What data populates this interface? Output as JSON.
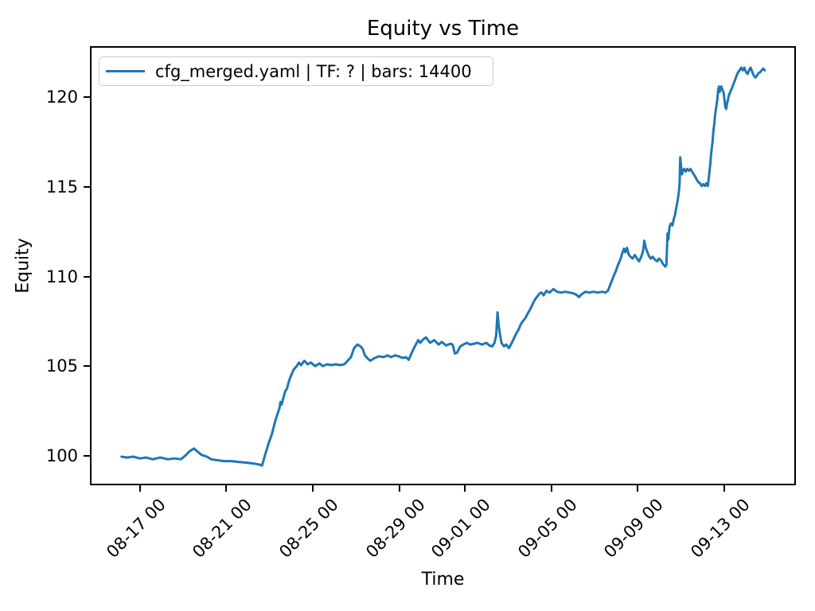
{
  "figure": {
    "title": "Equity vs Time",
    "xlabel": "Time",
    "ylabel": "Equity",
    "legend": {
      "label": "cfg_merged.yaml | TF: ? | bars: 14400",
      "position": "upper left"
    }
  },
  "chart_data": {
    "type": "line",
    "title": "Equity vs Time",
    "xlabel": "Time",
    "ylabel": "Equity",
    "grid": false,
    "legend_position": "upper left",
    "x_unit": "days since 08-16 00:00",
    "xlim": [
      -1.3,
      31.3
    ],
    "ylim": [
      98.35,
      122.85
    ],
    "y_ticks": [
      100,
      105,
      110,
      115,
      120
    ],
    "x_ticks": [
      {
        "label": "08-17 00",
        "t": 1
      },
      {
        "label": "08-21 00",
        "t": 5
      },
      {
        "label": "08-25 00",
        "t": 9
      },
      {
        "label": "08-29 00",
        "t": 13
      },
      {
        "label": "09-01 00",
        "t": 16
      },
      {
        "label": "09-05 00",
        "t": 20
      },
      {
        "label": "09-09 00",
        "t": 24
      },
      {
        "label": "09-13 00",
        "t": 28
      }
    ],
    "series": [
      {
        "name": "cfg_merged.yaml | TF: ? | bars: 14400",
        "color": "#1f77b4",
        "points": [
          [
            0.16,
            99.95
          ],
          [
            0.4,
            99.9
          ],
          [
            0.7,
            99.95
          ],
          [
            1.0,
            99.85
          ],
          [
            1.3,
            99.9
          ],
          [
            1.6,
            99.8
          ],
          [
            1.95,
            99.9
          ],
          [
            2.3,
            99.8
          ],
          [
            2.6,
            99.85
          ],
          [
            2.9,
            99.8
          ],
          [
            3.1,
            100.0
          ],
          [
            3.3,
            100.25
          ],
          [
            3.5,
            100.4
          ],
          [
            3.7,
            100.2
          ],
          [
            3.85,
            100.05
          ],
          [
            4.1,
            99.95
          ],
          [
            4.3,
            99.8
          ],
          [
            4.6,
            99.75
          ],
          [
            4.9,
            99.7
          ],
          [
            5.25,
            99.7
          ],
          [
            5.6,
            99.65
          ],
          [
            6.0,
            99.6
          ],
          [
            6.35,
            99.55
          ],
          [
            6.55,
            99.5
          ],
          [
            6.65,
            99.45
          ],
          [
            6.8,
            100.1
          ],
          [
            6.95,
            100.7
          ],
          [
            7.1,
            101.2
          ],
          [
            7.25,
            101.9
          ],
          [
            7.35,
            102.3
          ],
          [
            7.45,
            102.65
          ],
          [
            7.5,
            103.0
          ],
          [
            7.55,
            102.85
          ],
          [
            7.65,
            103.3
          ],
          [
            7.72,
            103.6
          ],
          [
            7.8,
            103.75
          ],
          [
            7.9,
            104.2
          ],
          [
            8.0,
            104.5
          ],
          [
            8.1,
            104.8
          ],
          [
            8.25,
            105.0
          ],
          [
            8.35,
            105.2
          ],
          [
            8.45,
            105.05
          ],
          [
            8.6,
            105.3
          ],
          [
            8.75,
            105.1
          ],
          [
            8.9,
            105.2
          ],
          [
            9.1,
            105.0
          ],
          [
            9.3,
            105.15
          ],
          [
            9.45,
            105.0
          ],
          [
            9.65,
            105.1
          ],
          [
            9.85,
            105.05
          ],
          [
            10.05,
            105.1
          ],
          [
            10.25,
            105.05
          ],
          [
            10.45,
            105.1
          ],
          [
            10.75,
            105.5
          ],
          [
            10.9,
            106.0
          ],
          [
            11.05,
            106.2
          ],
          [
            11.2,
            106.1
          ],
          [
            11.3,
            105.95
          ],
          [
            11.4,
            105.6
          ],
          [
            11.55,
            105.4
          ],
          [
            11.65,
            105.3
          ],
          [
            11.85,
            105.45
          ],
          [
            12.05,
            105.55
          ],
          [
            12.25,
            105.5
          ],
          [
            12.45,
            105.6
          ],
          [
            12.6,
            105.5
          ],
          [
            12.8,
            105.6
          ],
          [
            12.95,
            105.55
          ],
          [
            13.15,
            105.45
          ],
          [
            13.3,
            105.5
          ],
          [
            13.42,
            105.35
          ],
          [
            13.6,
            105.85
          ],
          [
            13.75,
            106.2
          ],
          [
            13.86,
            106.45
          ],
          [
            13.95,
            106.3
          ],
          [
            14.1,
            106.5
          ],
          [
            14.22,
            106.6
          ],
          [
            14.4,
            106.3
          ],
          [
            14.6,
            106.45
          ],
          [
            14.8,
            106.2
          ],
          [
            14.95,
            106.35
          ],
          [
            15.15,
            106.15
          ],
          [
            15.35,
            106.25
          ],
          [
            15.45,
            106.2
          ],
          [
            15.55,
            105.7
          ],
          [
            15.65,
            105.75
          ],
          [
            15.8,
            106.1
          ],
          [
            15.95,
            106.2
          ],
          [
            16.1,
            106.3
          ],
          [
            16.25,
            106.2
          ],
          [
            16.45,
            106.25
          ],
          [
            16.6,
            106.3
          ],
          [
            16.8,
            106.2
          ],
          [
            17.0,
            106.3
          ],
          [
            17.15,
            106.15
          ],
          [
            17.28,
            106.1
          ],
          [
            17.38,
            106.3
          ],
          [
            17.46,
            106.7
          ],
          [
            17.52,
            108.0
          ],
          [
            17.58,
            107.2
          ],
          [
            17.64,
            106.75
          ],
          [
            17.7,
            106.3
          ],
          [
            17.82,
            106.1
          ],
          [
            17.92,
            106.2
          ],
          [
            18.05,
            106.0
          ],
          [
            18.2,
            106.35
          ],
          [
            18.3,
            106.6
          ],
          [
            18.4,
            106.85
          ],
          [
            18.5,
            107.05
          ],
          [
            18.6,
            107.35
          ],
          [
            18.72,
            107.55
          ],
          [
            18.82,
            107.7
          ],
          [
            18.92,
            107.95
          ],
          [
            19.0,
            108.1
          ],
          [
            19.1,
            108.35
          ],
          [
            19.18,
            108.55
          ],
          [
            19.27,
            108.75
          ],
          [
            19.37,
            108.9
          ],
          [
            19.46,
            109.05
          ],
          [
            19.55,
            109.1
          ],
          [
            19.65,
            108.95
          ],
          [
            19.78,
            109.2
          ],
          [
            19.92,
            109.1
          ],
          [
            20.1,
            109.3
          ],
          [
            20.27,
            109.15
          ],
          [
            20.45,
            109.1
          ],
          [
            20.65,
            109.15
          ],
          [
            20.85,
            109.1
          ],
          [
            21.05,
            109.05
          ],
          [
            21.2,
            108.95
          ],
          [
            21.28,
            108.85
          ],
          [
            21.4,
            109.0
          ],
          [
            21.58,
            109.15
          ],
          [
            21.75,
            109.1
          ],
          [
            21.95,
            109.15
          ],
          [
            22.15,
            109.1
          ],
          [
            22.35,
            109.15
          ],
          [
            22.5,
            109.1
          ],
          [
            22.62,
            109.2
          ],
          [
            22.7,
            109.45
          ],
          [
            22.78,
            109.7
          ],
          [
            22.86,
            109.95
          ],
          [
            22.93,
            110.15
          ],
          [
            23.0,
            110.35
          ],
          [
            23.07,
            110.6
          ],
          [
            23.14,
            110.8
          ],
          [
            23.21,
            111.0
          ],
          [
            23.28,
            111.3
          ],
          [
            23.36,
            111.55
          ],
          [
            23.42,
            111.35
          ],
          [
            23.5,
            111.6
          ],
          [
            23.57,
            111.25
          ],
          [
            23.66,
            111.1
          ],
          [
            23.76,
            111.0
          ],
          [
            23.86,
            111.2
          ],
          [
            23.96,
            111.0
          ],
          [
            24.06,
            110.85
          ],
          [
            24.16,
            111.1
          ],
          [
            24.24,
            111.4
          ],
          [
            24.3,
            112.0
          ],
          [
            24.37,
            111.6
          ],
          [
            24.46,
            111.3
          ],
          [
            24.53,
            111.1
          ],
          [
            24.6,
            111.0
          ],
          [
            24.68,
            111.1
          ],
          [
            24.78,
            110.95
          ],
          [
            24.9,
            110.85
          ],
          [
            24.97,
            111.0
          ],
          [
            25.07,
            110.9
          ],
          [
            25.16,
            110.7
          ],
          [
            25.26,
            110.55
          ],
          [
            25.32,
            110.65
          ],
          [
            25.37,
            112.4
          ],
          [
            25.41,
            112.05
          ],
          [
            25.46,
            112.75
          ],
          [
            25.52,
            112.95
          ],
          [
            25.6,
            112.85
          ],
          [
            25.66,
            113.2
          ],
          [
            25.72,
            113.45
          ],
          [
            25.77,
            113.8
          ],
          [
            25.82,
            114.1
          ],
          [
            25.86,
            114.4
          ],
          [
            25.9,
            114.8
          ],
          [
            25.93,
            115.2
          ],
          [
            25.96,
            116.65
          ],
          [
            26.0,
            116.1
          ],
          [
            26.04,
            115.7
          ],
          [
            26.08,
            115.9
          ],
          [
            26.14,
            116.0
          ],
          [
            26.21,
            115.85
          ],
          [
            26.28,
            116.0
          ],
          [
            26.36,
            115.9
          ],
          [
            26.43,
            116.0
          ],
          [
            26.5,
            115.85
          ],
          [
            26.58,
            115.7
          ],
          [
            26.66,
            115.55
          ],
          [
            26.72,
            115.4
          ],
          [
            26.8,
            115.25
          ],
          [
            26.87,
            115.2
          ],
          [
            26.94,
            115.05
          ],
          [
            27.02,
            115.15
          ],
          [
            27.09,
            115.05
          ],
          [
            27.16,
            115.2
          ],
          [
            27.23,
            115.05
          ],
          [
            27.27,
            115.4
          ],
          [
            27.31,
            115.85
          ],
          [
            27.35,
            116.3
          ],
          [
            27.38,
            116.75
          ],
          [
            27.42,
            117.2
          ],
          [
            27.46,
            117.6
          ],
          [
            27.49,
            118.1
          ],
          [
            27.53,
            118.5
          ],
          [
            27.57,
            119.0
          ],
          [
            27.6,
            119.3
          ],
          [
            27.64,
            119.6
          ],
          [
            27.67,
            119.85
          ],
          [
            27.71,
            120.4
          ],
          [
            27.75,
            120.6
          ],
          [
            27.78,
            120.3
          ],
          [
            27.82,
            120.5
          ],
          [
            27.86,
            120.6
          ],
          [
            27.9,
            120.45
          ],
          [
            27.97,
            120.2
          ],
          [
            28.04,
            119.45
          ],
          [
            28.08,
            119.35
          ],
          [
            28.12,
            119.65
          ],
          [
            28.16,
            119.85
          ],
          [
            28.2,
            120.1
          ],
          [
            28.27,
            120.3
          ],
          [
            28.34,
            120.5
          ],
          [
            28.42,
            120.75
          ],
          [
            28.49,
            120.95
          ],
          [
            28.56,
            121.2
          ],
          [
            28.63,
            121.4
          ],
          [
            28.7,
            121.5
          ],
          [
            28.77,
            121.65
          ],
          [
            28.85,
            121.5
          ],
          [
            28.92,
            121.65
          ],
          [
            29.0,
            121.4
          ],
          [
            29.07,
            121.3
          ],
          [
            29.14,
            121.5
          ],
          [
            29.21,
            121.65
          ],
          [
            29.29,
            121.4
          ],
          [
            29.36,
            121.2
          ],
          [
            29.43,
            121.1
          ],
          [
            29.5,
            121.2
          ],
          [
            29.58,
            121.35
          ],
          [
            29.65,
            121.4
          ],
          [
            29.72,
            121.5
          ],
          [
            29.79,
            121.6
          ],
          [
            29.86,
            121.5
          ]
        ]
      }
    ]
  }
}
